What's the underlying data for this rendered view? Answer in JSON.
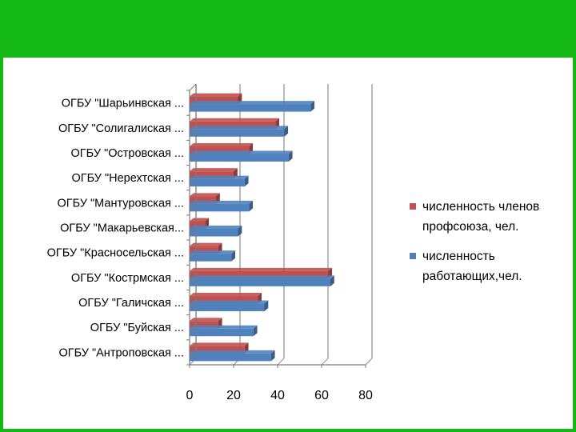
{
  "chart_data": {
    "type": "bar",
    "orientation": "horizontal",
    "style": "3d-clustered",
    "categories": [
      "ОГБУ \"Антроповская ...",
      "ОГБУ \"Буйская ...",
      "ОГБУ \"Галичская ...",
      "ОГБУ \"Кострмская ...",
      "ОГБУ \"Красносельская ...",
      "ОГБУ \"Макарьевская...",
      "ОГБУ \"Мантуровская ...",
      "ОГБУ \"Нерехтская ...",
      "ОГБУ \"Островская ...",
      "ОГБУ \"Солигалиская ...",
      "ОГБУ \"Шарьинвская ..."
    ],
    "series": [
      {
        "name": "численность членов профсоюза, чел.",
        "color": "#c0504d",
        "values": [
          25,
          13,
          31,
          63,
          13,
          7,
          12,
          20,
          27,
          39,
          22
        ]
      },
      {
        "name": "численность работающих,чел.",
        "color": "#4f81bd",
        "values": [
          37,
          29,
          34,
          64,
          19,
          22,
          27,
          25,
          45,
          43,
          55
        ]
      }
    ],
    "xlim": [
      0,
      80
    ],
    "xticks": [
      0,
      20,
      40,
      60,
      80
    ],
    "grid": true,
    "legend_position": "right"
  },
  "decor": {
    "band_color": "#14b814"
  }
}
